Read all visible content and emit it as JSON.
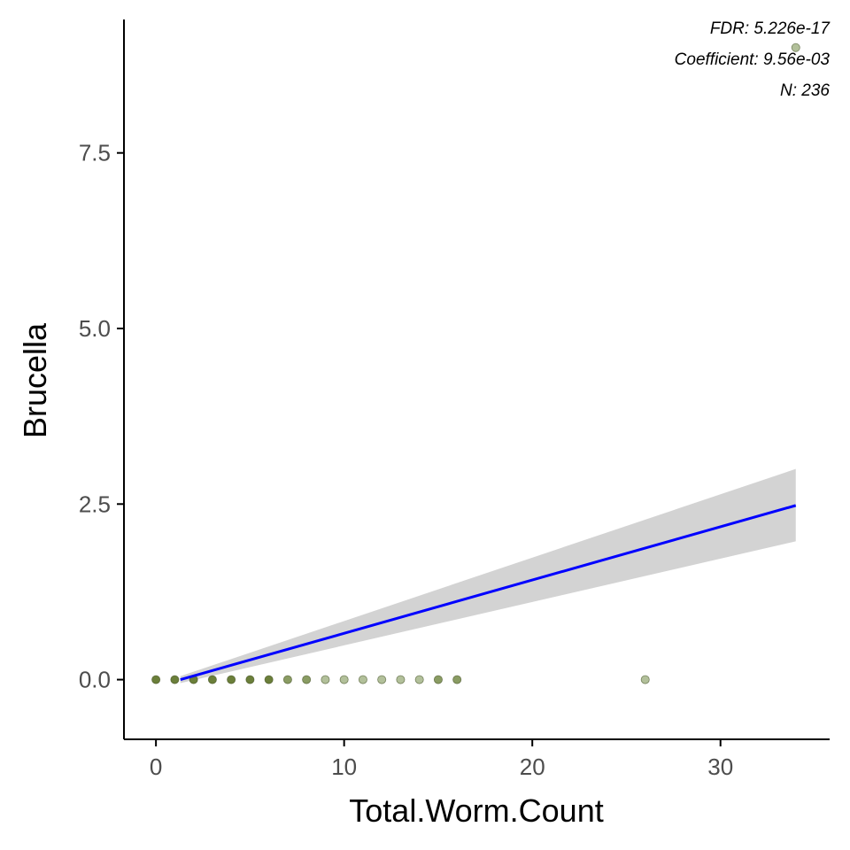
{
  "chart_data": {
    "type": "scatter",
    "xlabel": "Total.Worm.Count",
    "ylabel": "Brucella",
    "xlim": [
      -1.7,
      35.8
    ],
    "ylim": [
      -0.85,
      9.4
    ],
    "x_ticks": [
      0,
      10,
      20,
      30
    ],
    "x_tick_labels": [
      "0",
      "10",
      "20",
      "30"
    ],
    "y_ticks": [
      0,
      2.5,
      5,
      7.5
    ],
    "y_tick_labels": [
      "0.0",
      "2.5",
      "5.0",
      "7.5"
    ],
    "grid": false,
    "legend": "none",
    "annotations": [
      "FDR: 5.226e-17",
      "Coefficient: 9.56e-03",
      "N: 236"
    ],
    "points": [
      {
        "x": 0,
        "y": 0,
        "shade": "dark"
      },
      {
        "x": 1,
        "y": 0,
        "shade": "dark"
      },
      {
        "x": 2,
        "y": 0,
        "shade": "dark"
      },
      {
        "x": 3,
        "y": 0,
        "shade": "dark"
      },
      {
        "x": 4,
        "y": 0,
        "shade": "dark"
      },
      {
        "x": 5,
        "y": 0,
        "shade": "dark"
      },
      {
        "x": 6,
        "y": 0,
        "shade": "dark"
      },
      {
        "x": 7,
        "y": 0,
        "shade": "mid"
      },
      {
        "x": 8,
        "y": 0,
        "shade": "mid"
      },
      {
        "x": 9,
        "y": 0,
        "shade": "light"
      },
      {
        "x": 10,
        "y": 0,
        "shade": "light"
      },
      {
        "x": 11,
        "y": 0,
        "shade": "light"
      },
      {
        "x": 12,
        "y": 0,
        "shade": "light"
      },
      {
        "x": 13,
        "y": 0,
        "shade": "light"
      },
      {
        "x": 14,
        "y": 0,
        "shade": "light"
      },
      {
        "x": 15,
        "y": 0,
        "shade": "mid"
      },
      {
        "x": 16,
        "y": 0,
        "shade": "mid"
      },
      {
        "x": 26,
        "y": 0,
        "shade": "light"
      },
      {
        "x": 34,
        "y": 9,
        "shade": "light"
      }
    ],
    "fit": {
      "x": [
        1.3,
        34
      ],
      "y": [
        0,
        2.48
      ],
      "ci_low": [
        -0.05,
        1.97
      ],
      "ci_high": [
        0.05,
        3.0
      ]
    },
    "colors": {
      "fit_line": "#0000ff",
      "ci_band": "#d3d3d3",
      "point_dark": "#6b7f3a",
      "point_mid": "#8a9c63",
      "point_light": "#b2c09a",
      "axis": "#000000",
      "tick_label": "#4d4d4d"
    }
  }
}
